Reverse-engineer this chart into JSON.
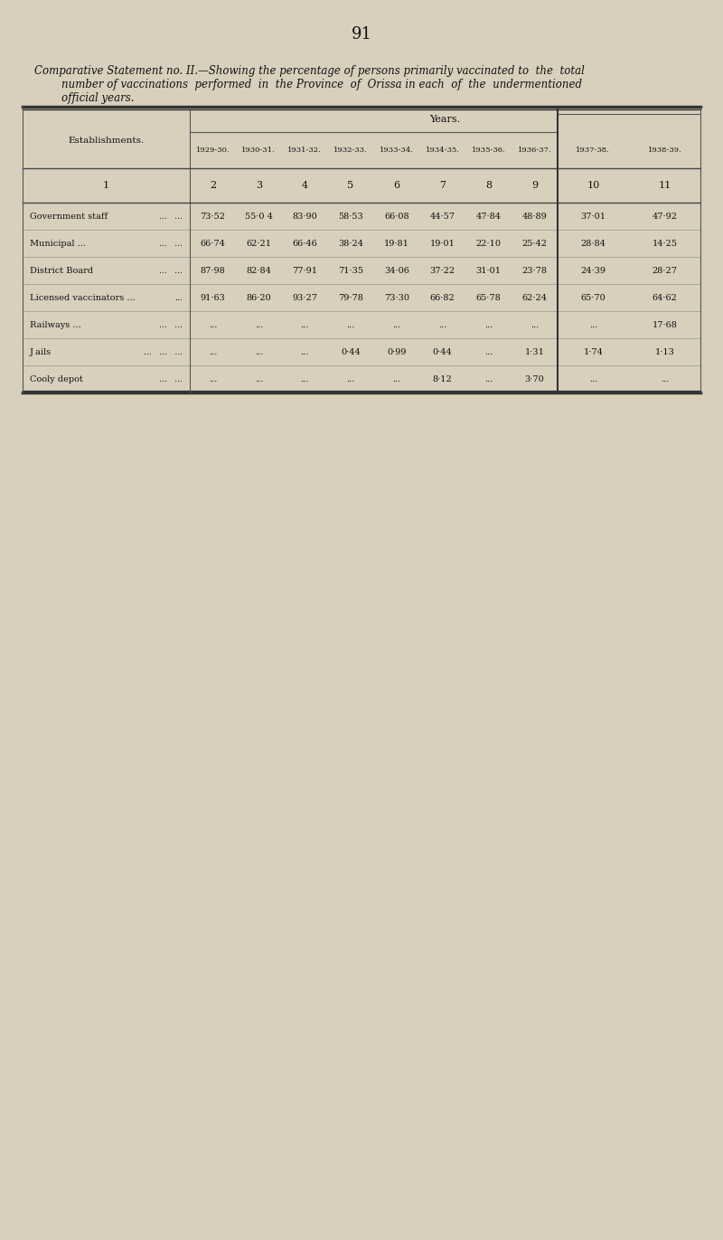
{
  "page_number": "91",
  "title_line1": "Comparative Statement no. II.—Showing the percentage of persons primarily vaccinated to  the  total",
  "title_line2": "number of vaccinations  performed  in  the Province  of  Orissa in each  of  the  undermentioned",
  "title_line3": "official years.",
  "years_header": "Years.",
  "col_establishments": "Establishments.",
  "year_cols": [
    "1929-30.",
    "1930-31.",
    "1931-32.",
    "1932-33.",
    "1933-34.",
    "1934-35.",
    "1935-36.",
    "1936-37.",
    "1937-38.",
    "1938-39."
  ],
  "col_numbers": [
    "1",
    "2",
    "3",
    "4",
    "5",
    "6",
    "7",
    "8",
    "9",
    "10",
    "11"
  ],
  "rows": [
    {
      "name": "Government staff",
      "dots": "...   ...",
      "values": [
        "73·52",
        "55·0 4",
        "83·90",
        "58·53",
        "66·08",
        "44·57",
        "47·84",
        "48·89",
        "37·01",
        "47·92"
      ]
    },
    {
      "name": "Municipal ...",
      "dots": "...   ...",
      "extra_dots": true,
      "values": [
        "66·74",
        "62·21",
        "66·46",
        "38·24",
        "19·81",
        "19·01",
        "22·10",
        "25·42",
        "28·84",
        "14·25"
      ]
    },
    {
      "name": "District Board",
      "dots": "...   ...",
      "values": [
        "87·98",
        "82·84",
        "77·91",
        "71·35",
        "34·06",
        "37·22",
        "31·01",
        "23·78",
        "24·39",
        "28·27"
      ]
    },
    {
      "name": "Licensed vaccinators ...",
      "dots": "...",
      "values": [
        "91·63",
        "86·20",
        "93·27",
        "79·78",
        "73·30",
        "66·82",
        "65·78",
        "62·24",
        "65·70",
        "64·62"
      ]
    },
    {
      "name": "Railways ...",
      "dots": "...   ...",
      "extra_dots": true,
      "values": [
        "...",
        "...",
        "...",
        "...",
        "...",
        "...",
        "...",
        "...",
        "...",
        "17·68"
      ]
    },
    {
      "name": "J ails",
      "dots": "...   ...   ...",
      "extra_dots": true,
      "values": [
        "...",
        "...",
        "...",
        "0·44",
        "0·99",
        "0·44",
        "...",
        "1·31",
        "1·74",
        "1·13"
      ]
    },
    {
      "name": "Cooly depot",
      "dots": "...   ...",
      "values": [
        "...",
        "...",
        "...",
        "...",
        "...",
        "8·12",
        "...",
        "3·70",
        "...",
        "..."
      ]
    }
  ],
  "bg_color": "#d8d0bc",
  "text_color": "#111111"
}
